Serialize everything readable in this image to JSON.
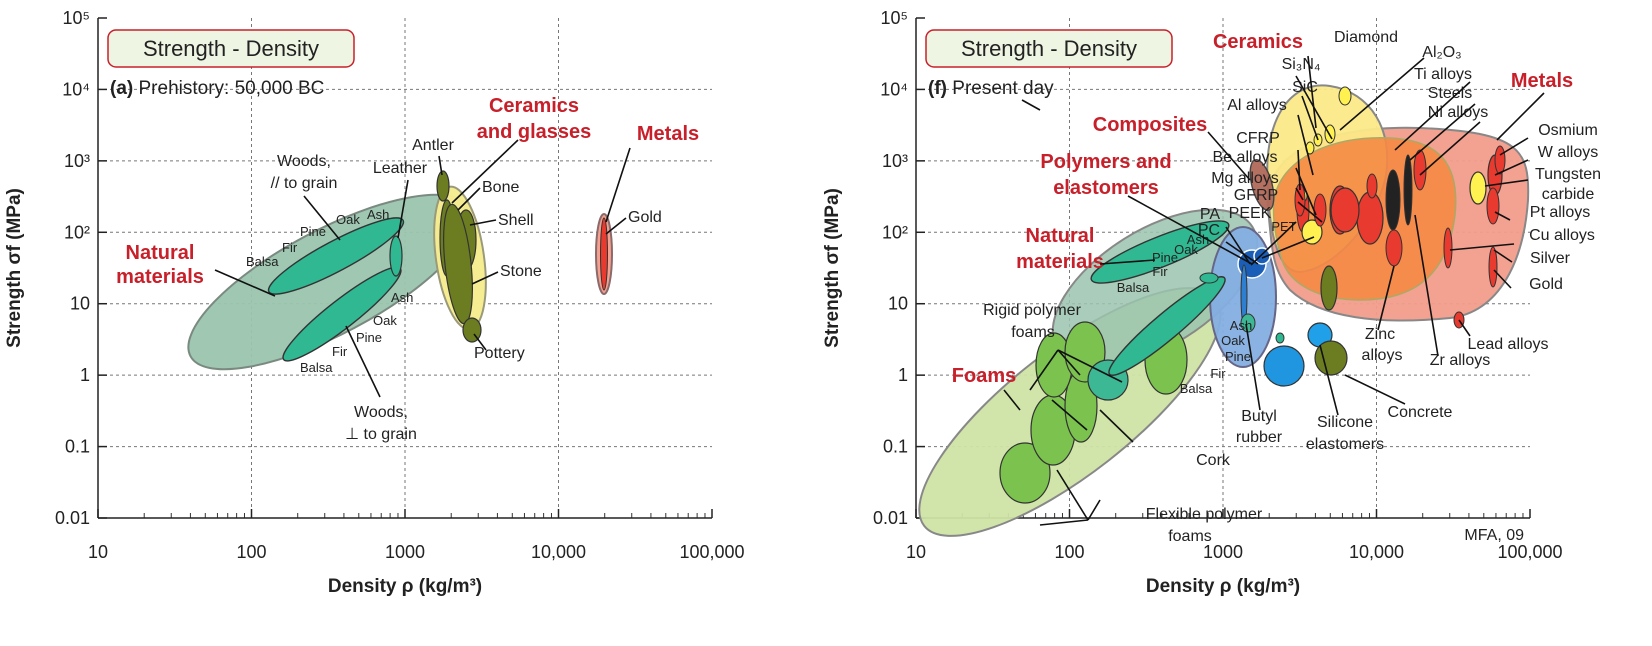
{
  "colors": {
    "natural": "#2fb892",
    "natural_env": "#9ac4ae",
    "foam": "#7cc24e",
    "foam_env": "#cfe3a5",
    "ceramic": "#6b7d20",
    "ceramic_env": "#f6ec8f",
    "metal": "#e83a2e",
    "metal_env": "#f29c8a",
    "polymer": "#2e7fd0",
    "polymer_env": "#84aee0",
    "composite": "#a05040",
    "orange_env": "#f58a45",
    "yellow_env": "#fbe988",
    "label_red": "#c8202a",
    "title_box_border": "#c8202a",
    "title_box_fill": "#eef5e2"
  },
  "chart_data": [
    {
      "type": "scatter",
      "title": "Strength - Density",
      "subtitle_bold": "(a)",
      "subtitle": "Prehistory: 50,000 BC",
      "xlabel": "Density ρ (kg/m³)",
      "ylabel": "Strength σf (MPa)",
      "xscale": "log",
      "yscale": "log",
      "xlim": [
        10,
        100000
      ],
      "ylim": [
        0.01,
        100000
      ],
      "grid": true,
      "x_tick_labels": [
        "10",
        "100",
        "1000",
        "10,000",
        "100,000"
      ],
      "y_tick_labels": [
        "0.01",
        "0.1",
        "1",
        "10",
        "10²",
        "10³",
        "10⁴",
        "10⁵"
      ],
      "class_labels": [
        "Natural materials",
        "Ceramics and glasses",
        "Metals"
      ],
      "material_labels": [
        "Woods, // to grain",
        "Leather",
        "Antler",
        "Bone",
        "Shell",
        "Stone",
        "Pottery",
        "Gold",
        "Woods, ⊥ to grain",
        "Balsa",
        "Fir",
        "Pine",
        "Oak",
        "Ash"
      ],
      "regions": [
        {
          "name": "Woods, // to grain",
          "x": [
            150,
            800
          ],
          "y": [
            15,
            120
          ]
        },
        {
          "name": "Woods, ⊥ to grain",
          "x": [
            150,
            800
          ],
          "y": [
            2,
            40
          ]
        },
        {
          "name": "Leather",
          "x": [
            850,
            900
          ],
          "y": [
            20,
            70
          ]
        },
        {
          "name": "Antler",
          "x": [
            1700,
            1900
          ],
          "y": [
            80,
            250
          ]
        },
        {
          "name": "Bone",
          "x": [
            1800,
            2200
          ],
          "y": [
            30,
            200
          ]
        },
        {
          "name": "Shell",
          "x": [
            2000,
            3000
          ],
          "y": [
            10,
            120
          ]
        },
        {
          "name": "Stone",
          "x": [
            1800,
            3000
          ],
          "y": [
            5,
            200
          ]
        },
        {
          "name": "Pottery",
          "x": [
            2200,
            3000
          ],
          "y": [
            6,
            15
          ]
        },
        {
          "name": "Gold",
          "x": [
            19300,
            19300
          ],
          "y": [
            20,
            200
          ]
        }
      ]
    },
    {
      "type": "scatter",
      "title": "Strength - Density",
      "subtitle_bold": "(f)",
      "subtitle": "Present day",
      "xlabel": "Density ρ (kg/m³)",
      "ylabel": "Strength σf (MPa)",
      "xscale": "log",
      "yscale": "log",
      "xlim": [
        10,
        100000
      ],
      "ylim": [
        0.01,
        100000
      ],
      "grid": true,
      "x_tick_labels": [
        "10",
        "100",
        "1000",
        "10,000",
        "100,000"
      ],
      "y_tick_labels": [
        "0.01",
        "0.1",
        "1",
        "10",
        "10²",
        "10³",
        "10⁴",
        "10⁵"
      ],
      "class_labels": [
        "Ceramics",
        "Metals",
        "Composites",
        "Polymers and elastomers",
        "Natural materials",
        "Foams"
      ],
      "material_labels": [
        "Diamond",
        "Al2O3",
        "Si3N4",
        "SiC",
        "Ti alloys",
        "Steels",
        "Ni alloys",
        "Al alloys",
        "CFRP",
        "Osmium",
        "W alloys",
        "Tungsten carbide",
        "Be alloys",
        "Mg alloys",
        "GFRP",
        "PEEK",
        "PA",
        "PC",
        "PET",
        "Pt alloys",
        "Cu alloys",
        "Silver",
        "Gold",
        "Oak",
        "Ash",
        "Pine",
        "Fir",
        "Balsa",
        "Rigid polymer foams",
        "Lead alloys",
        "Zinc alloys",
        "Zr alloys",
        "Butyl rubber",
        "Silicone elastomers",
        "Concrete",
        "Cork",
        "Flexible polymer foams"
      ],
      "credit": "MFA, 09",
      "regions": [
        {
          "name": "Foams",
          "x": [
            12,
            1000
          ],
          "y": [
            0.02,
            40
          ]
        },
        {
          "name": "Natural materials",
          "x": [
            100,
            1500
          ],
          "y": [
            1.5,
            200
          ]
        },
        {
          "name": "Polymers and elastomers",
          "x": [
            900,
            2200
          ],
          "y": [
            0.8,
            200
          ]
        },
        {
          "name": "Composites",
          "x": [
            1500,
            2200
          ],
          "y": [
            80,
            1500
          ]
        },
        {
          "name": "Ceramics",
          "x": [
            2200,
            6000
          ],
          "y": [
            40,
            10000
          ]
        },
        {
          "name": "Metals",
          "x": [
            1700,
            23000
          ],
          "y": [
            8,
            3000
          ]
        }
      ]
    }
  ],
  "labels": {
    "credit": "MFA, 09"
  }
}
